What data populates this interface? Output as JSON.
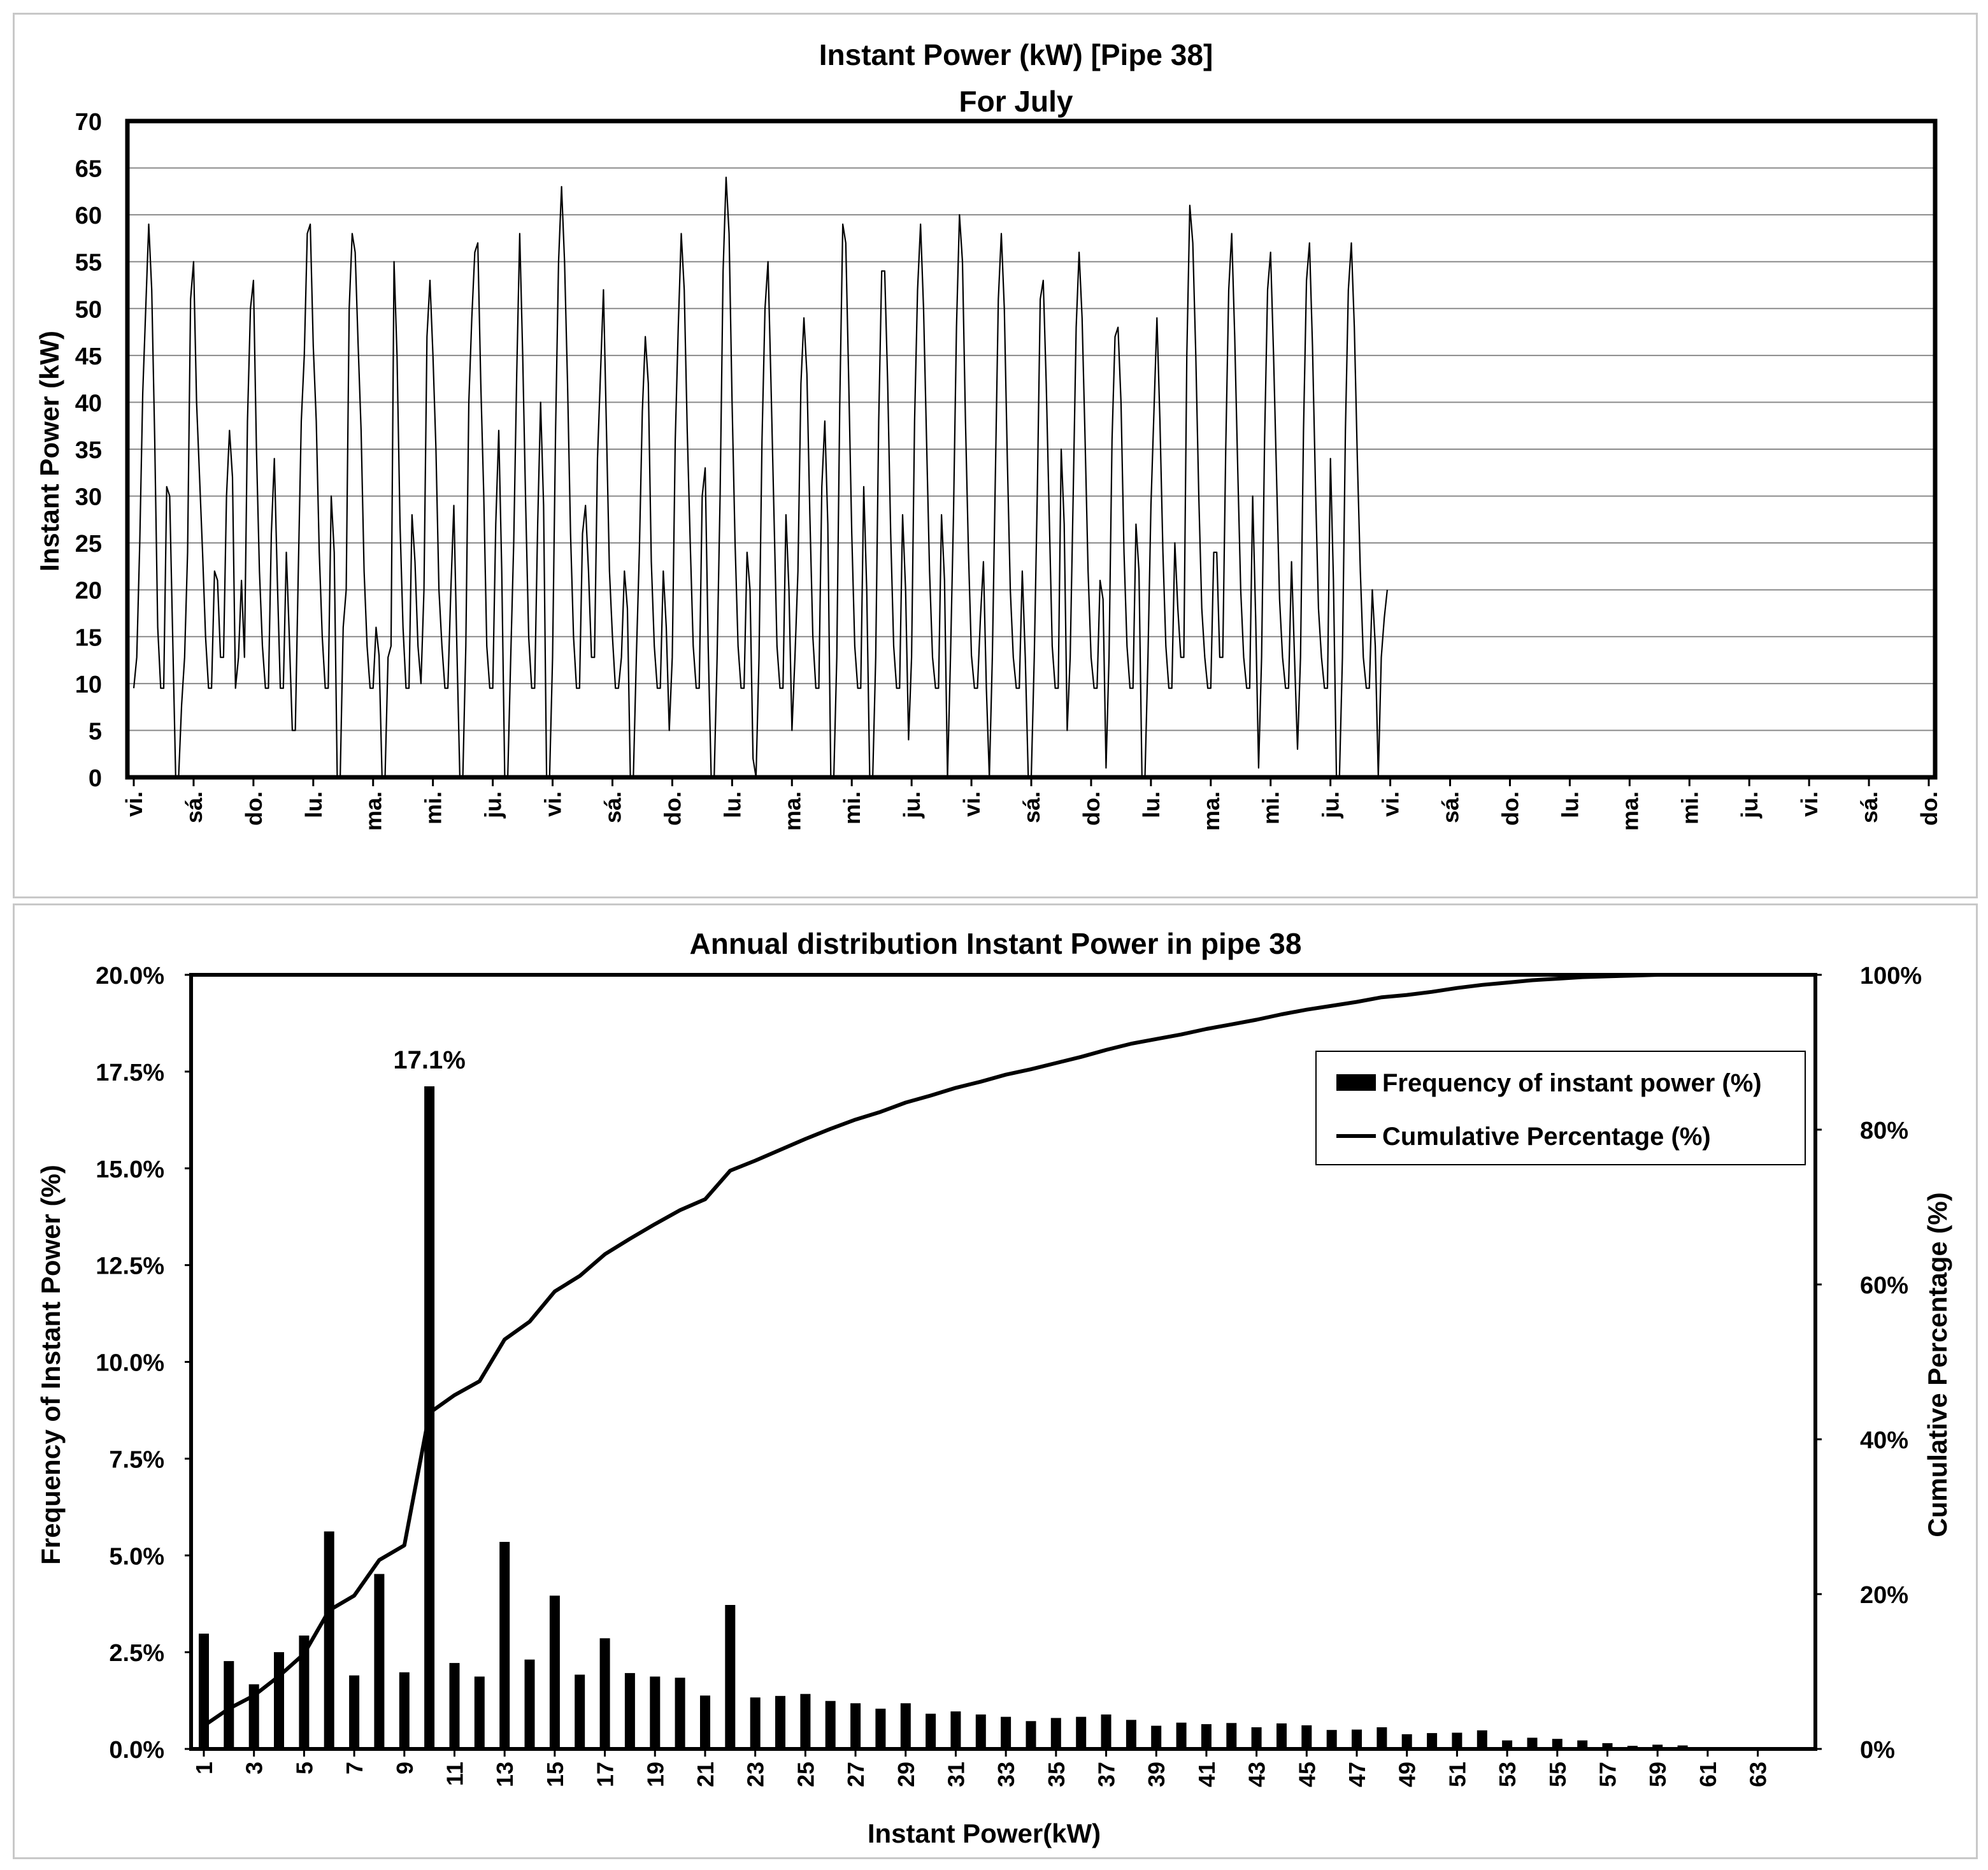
{
  "chart_data": [
    {
      "type": "line",
      "title": "Instant Power (kW) [Pipe 38]",
      "subtitle": "For July",
      "ylabel": "Instant Power (kW)",
      "xlabel": "",
      "ylim": [
        0,
        70
      ],
      "yticks": [
        "0",
        "5",
        "10",
        "15",
        "20",
        "25",
        "30",
        "35",
        "40",
        "45",
        "50",
        "55",
        "60",
        "65",
        "70"
      ],
      "xtick_labels": [
        "vi.",
        "sá.",
        "do.",
        "lu.",
        "ma.",
        "mi.",
        "ju.",
        "vi.",
        "sá.",
        "do.",
        "lu.",
        "ma.",
        "mi.",
        "ju.",
        "vi.",
        "sá.",
        "do.",
        "lu.",
        "ma.",
        "mi.",
        "ju.",
        "vi.",
        "sá.",
        "do.",
        "lu.",
        "ma.",
        "mi.",
        "ju.",
        "vi.",
        "sá.",
        "do."
      ],
      "grid": true,
      "daily_peaks_kW": [
        59,
        55,
        53,
        35,
        59,
        58,
        55,
        54,
        57,
        58,
        63,
        52,
        47,
        58,
        64,
        55,
        49,
        59,
        54,
        59,
        60,
        58,
        53,
        56,
        48,
        49,
        61,
        58,
        56,
        57,
        57
      ],
      "series": [
        {
          "name": "Instant Power (kW)",
          "color": "#000000",
          "day_offset": [
            0,
            0.05,
            0.1,
            0.15,
            0.2,
            0.25,
            0.3,
            0.35,
            0.4,
            0.45,
            0.5,
            0.55,
            0.6,
            0.65,
            0.7,
            0.75,
            0.8,
            0.85,
            0.9,
            0.95
          ],
          "values": [
            9.5,
            12.8,
            25,
            41,
            50,
            59,
            52,
            36,
            16,
            9.5,
            9.5,
            31,
            30,
            15,
            0,
            0,
            7.7,
            12.8,
            24,
            51,
            55,
            40,
            32,
            24,
            15,
            9.5,
            9.5,
            22,
            21,
            12.8,
            12.8,
            30,
            37,
            32,
            9.5,
            12.8,
            21,
            12.8,
            38,
            50,
            53,
            35,
            22,
            14,
            9.5,
            9.5,
            26,
            34,
            21,
            9.5,
            9.5,
            24,
            15,
            5,
            5,
            22,
            38,
            45,
            58,
            59,
            46,
            38,
            24,
            15,
            9.5,
            9.5,
            30,
            24,
            0,
            0,
            16,
            20,
            50,
            58,
            56,
            46,
            37,
            22,
            14,
            9.5,
            9.5,
            16,
            13,
            0,
            0,
            12.8,
            14,
            55,
            45,
            27,
            16,
            9.5,
            9.5,
            28,
            23,
            14,
            10,
            20,
            47,
            53,
            45,
            35,
            20,
            14,
            9.5,
            9.5,
            20,
            29,
            14,
            0,
            0,
            14,
            40,
            49,
            56,
            57,
            42,
            30,
            14,
            9.5,
            9.5,
            27,
            37,
            22,
            0,
            0,
            12.8,
            25,
            43,
            58,
            45,
            29,
            15,
            9.5,
            9.5,
            27,
            40,
            29,
            0,
            0,
            12.8,
            37,
            55,
            63,
            55,
            42,
            26,
            15,
            9.5,
            9.5,
            26,
            29,
            22,
            12.8,
            12.8,
            34,
            43,
            52,
            37,
            22,
            15,
            9.5,
            9.5,
            12.8,
            22,
            18,
            0,
            0,
            12.8,
            24,
            39,
            47,
            42,
            23,
            14,
            9.5,
            9.5,
            22,
            16,
            5,
            12.8,
            36,
            48,
            58,
            52,
            37,
            25,
            14,
            9.5,
            9.5,
            30,
            33,
            14,
            0,
            0,
            12.8,
            30,
            54,
            64,
            58,
            40,
            25,
            14,
            9.5,
            9.5,
            24,
            20,
            2,
            0,
            12.8,
            36,
            50,
            55,
            42,
            28,
            14,
            9.5,
            9.5,
            28,
            20,
            5,
            12.8,
            22,
            42,
            49,
            43,
            28,
            15,
            9.5,
            9.5,
            31,
            38,
            27,
            0,
            0,
            12.8,
            40,
            59,
            57,
            42,
            26,
            14,
            9.5,
            9.5,
            31,
            20,
            0,
            0,
            12.8,
            38,
            54,
            54,
            42,
            26,
            14,
            9.5,
            9.5,
            28,
            20,
            4,
            12.8,
            38,
            52,
            59,
            50,
            36,
            22,
            12.8,
            9.5,
            9.5,
            28,
            21,
            0,
            12.8,
            28,
            48,
            60,
            55,
            38,
            24,
            13,
            9.5,
            9.5,
            17,
            23,
            9.5,
            0,
            12.8,
            32,
            51,
            58,
            50,
            34,
            20,
            12.8,
            9.5,
            9.5,
            22,
            12.8,
            0,
            0,
            12.8,
            30,
            51,
            53,
            42,
            28,
            14,
            9.5,
            9.5,
            35,
            27,
            5,
            12.8,
            30,
            48,
            56,
            49,
            36,
            22,
            12.8,
            9.5,
            9.5,
            21,
            19,
            1,
            12.8,
            36,
            47,
            48,
            40,
            24,
            14,
            9.5,
            9.5,
            27,
            22,
            0,
            0,
            12.8,
            29,
            39,
            49,
            38,
            24,
            14,
            9.5,
            9.5,
            25,
            18,
            12.8,
            12.8,
            45,
            61,
            57,
            45,
            30,
            18,
            12.8,
            9.5,
            9.5,
            24,
            24,
            12.8,
            12.8,
            35,
            52,
            58,
            47,
            33,
            20,
            12.8,
            9.5,
            9.5,
            30,
            17,
            1,
            12.8,
            36,
            52,
            56,
            45,
            32,
            19,
            12.8,
            9.5,
            9.5,
            23,
            12.8,
            3,
            12.8,
            37,
            53,
            57,
            46,
            31,
            18,
            12.8,
            9.5,
            9.5,
            34,
            21,
            0,
            0,
            12.8,
            37,
            52,
            57,
            48,
            34,
            22,
            12.8,
            9.5,
            9.5,
            20,
            14,
            0,
            12.8,
            17,
            20
          ]
        }
      ]
    },
    {
      "type": "bar",
      "title": "Annual distribution Instant Power in pipe 38",
      "xlabel": "Instant Power(kW)",
      "ylabel": "Frequency of Instant Power (%)",
      "y2label": "Cumulative Percentage (%)",
      "ylim": [
        0,
        20
      ],
      "yticks": [
        "0.0%",
        "2.5%",
        "5.0%",
        "7.5%",
        "10.0%",
        "12.5%",
        "15.0%",
        "17.5%",
        "20.0%"
      ],
      "y2lim": [
        0,
        100
      ],
      "y2ticks": [
        "0%",
        "20%",
        "40%",
        "60%",
        "80%",
        "100%"
      ],
      "xtick_labels": [
        "1",
        "3",
        "5",
        "7",
        "9",
        "11",
        "13",
        "15",
        "17",
        "19",
        "21",
        "23",
        "25",
        "27",
        "29",
        "31",
        "33",
        "35",
        "37",
        "39",
        "41",
        "43",
        "45",
        "47",
        "49",
        "51",
        "53",
        "55",
        "57",
        "59",
        "61",
        "63"
      ],
      "categories": [
        1,
        2,
        3,
        4,
        5,
        6,
        7,
        8,
        9,
        10,
        11,
        12,
        13,
        14,
        15,
        16,
        17,
        18,
        19,
        20,
        21,
        22,
        23,
        24,
        25,
        26,
        27,
        28,
        29,
        30,
        31,
        32,
        33,
        34,
        35,
        36,
        37,
        38,
        39,
        40,
        41,
        42,
        43,
        44,
        45,
        46,
        47,
        48,
        49,
        50,
        51,
        52,
        53,
        54,
        55,
        56,
        57,
        58,
        59,
        60,
        61,
        62,
        63,
        64
      ],
      "annotation": "17.1%",
      "legend_position": "top-right",
      "series": [
        {
          "name": "Frequency of instant power (%)",
          "kind": "bar",
          "color": "#000000",
          "values": [
            2.98,
            2.27,
            1.67,
            2.5,
            2.93,
            5.62,
            1.9,
            4.52,
            1.98,
            17.12,
            2.22,
            1.87,
            5.35,
            2.31,
            3.96,
            1.92,
            2.86,
            1.96,
            1.87,
            1.84,
            1.38,
            3.72,
            1.33,
            1.37,
            1.42,
            1.24,
            1.18,
            1.04,
            1.18,
            0.91,
            0.97,
            0.89,
            0.83,
            0.72,
            0.8,
            0.83,
            0.89,
            0.75,
            0.6,
            0.68,
            0.64,
            0.67,
            0.56,
            0.66,
            0.61,
            0.49,
            0.5,
            0.56,
            0.38,
            0.41,
            0.42,
            0.48,
            0.22,
            0.29,
            0.26,
            0.22,
            0.15,
            0.08,
            0.11,
            0.09,
            0.05,
            0.03,
            0.02,
            0.02
          ]
        },
        {
          "name": "Cumulative Percentage (%)",
          "kind": "line",
          "axis": "right",
          "color": "#000000",
          "values": [
            3.0,
            5.2,
            6.9,
            9.4,
            12.3,
            17.9,
            19.8,
            24.4,
            26.3,
            43.4,
            45.7,
            47.5,
            52.9,
            55.2,
            59.1,
            61.1,
            63.9,
            65.9,
            67.8,
            69.6,
            71.0,
            74.7,
            76.0,
            77.4,
            78.8,
            80.1,
            81.3,
            82.3,
            83.5,
            84.4,
            85.4,
            86.2,
            87.1,
            87.8,
            88.6,
            89.4,
            90.3,
            91.1,
            91.7,
            92.3,
            93.0,
            93.6,
            94.2,
            94.9,
            95.5,
            96.0,
            96.5,
            97.1,
            97.4,
            97.8,
            98.3,
            98.7,
            99.0,
            99.3,
            99.5,
            99.7,
            99.8,
            99.9,
            100.0,
            100.0,
            100.0,
            100.0,
            100.0,
            100.0
          ]
        }
      ]
    }
  ]
}
